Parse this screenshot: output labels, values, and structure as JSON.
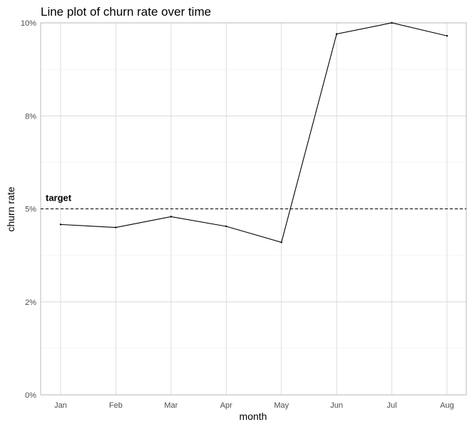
{
  "chart_data": {
    "type": "line",
    "title": "Line plot of churn rate over time",
    "xlabel": "month",
    "ylabel": "churn rate",
    "categories": [
      "Jan",
      "Feb",
      "Mar",
      "Apr",
      "May",
      "Jun",
      "Jul",
      "Aug"
    ],
    "series": [
      {
        "values": [
          4.58,
          4.5,
          4.79,
          4.53,
          4.1,
          9.7,
          10.0,
          9.65
        ]
      }
    ],
    "ylim": [
      0,
      10
    ],
    "y_ticks": [
      0,
      2.5,
      5,
      7.5,
      10
    ],
    "y_tick_labels": [
      "0%",
      "2%",
      "5%",
      "8%",
      "10%"
    ],
    "reference_line": {
      "value": 5,
      "label": "target",
      "style": "dashed"
    },
    "grid": true,
    "legend": "none"
  }
}
